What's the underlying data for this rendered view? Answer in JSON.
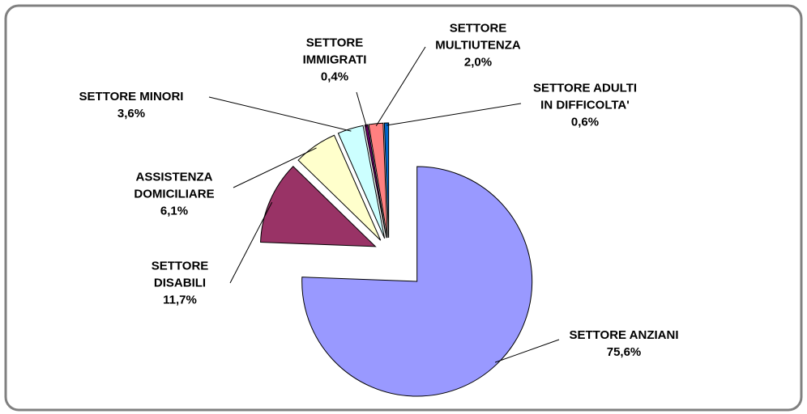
{
  "chart_data": {
    "type": "pie",
    "categories": [
      "SETTORE ANZIANI",
      "SETTORE\nDISABILI",
      "ASSISTENZA\nDOMICILIARE",
      "SETTORE MINORI",
      "SETTORE\nIMMIGRATI",
      "SETTORE\nMULTIUTENZA",
      "SETTORE ADULTI\nIN DIFFICOLTA'"
    ],
    "values": [
      75.6,
      11.7,
      6.1,
      3.6,
      0.4,
      2.0,
      0.6
    ],
    "value_labels": [
      "75,6%",
      "11,7%",
      "6,1%",
      "3,6%",
      "0,4%",
      "2,0%",
      "0,6%"
    ],
    "colors": [
      "#9999ff",
      "#993366",
      "#ffffcc",
      "#ccffff",
      "#660066",
      "#ff8080",
      "#0066cc"
    ]
  }
}
